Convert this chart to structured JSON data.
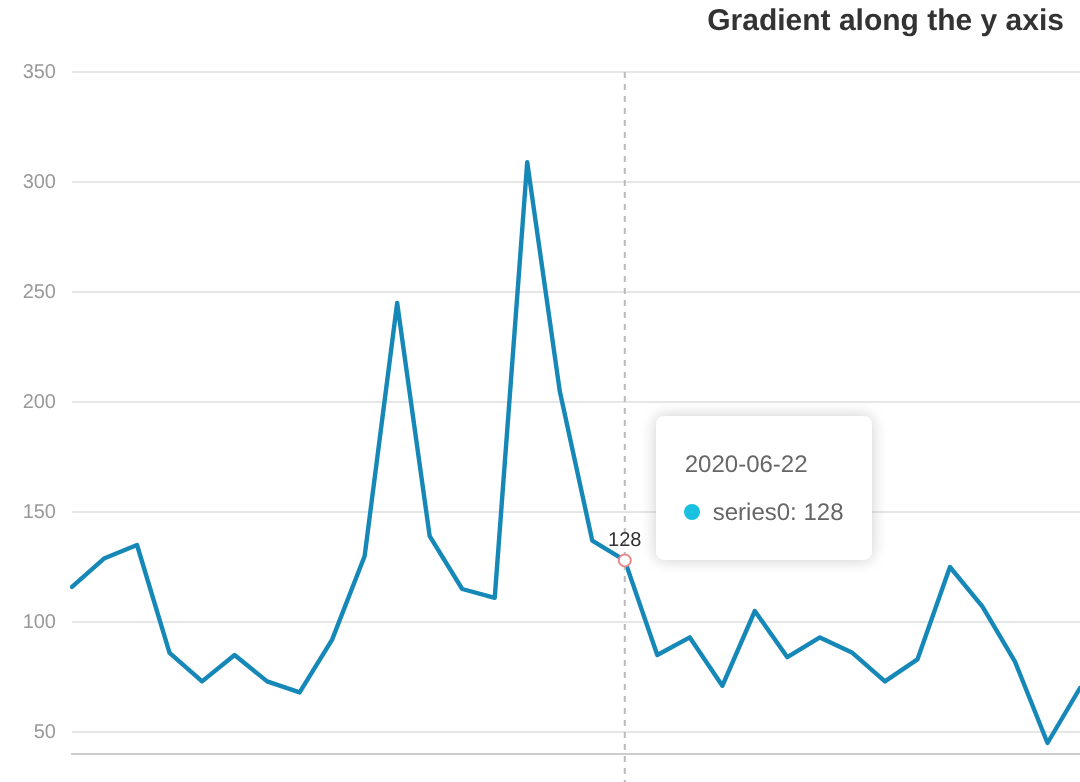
{
  "chart_data": {
    "type": "line",
    "title": "Gradient along the y axis",
    "annotations": [
      "2020-06-22",
      "series0: 128"
    ],
    "categories": [
      null,
      null,
      null,
      null,
      null,
      null,
      null,
      null,
      null,
      null,
      null,
      null,
      null,
      null,
      null,
      null,
      null,
      null,
      null,
      null,
      null,
      null,
      null,
      null,
      null,
      null,
      null,
      null,
      null,
      null,
      null,
      null
    ],
    "series": [
      {
        "values": [
          116,
          129,
          135,
          86,
          73,
          85,
          73,
          68,
          92,
          130,
          245,
          139,
          115,
          111,
          309,
          205,
          137,
          128,
          85,
          93,
          71,
          105,
          84,
          93,
          86,
          73,
          83,
          125,
          107,
          82,
          45,
          70
        ],
        "color": "#1688b8",
        "value_labels": [
          null,
          null,
          null,
          null,
          null,
          null,
          null,
          null,
          null,
          null,
          null,
          null,
          null,
          null,
          null,
          null,
          null,
          "128",
          null,
          null,
          null,
          null,
          null,
          null,
          null,
          null,
          null,
          null,
          null,
          null,
          null,
          null
        ]
      }
    ],
    "ylim": [
      40,
      350
    ],
    "yticks": [
      50,
      100,
      150,
      200,
      250,
      300,
      350
    ],
    "grid": "y",
    "tick_labels": "y"
  }
}
